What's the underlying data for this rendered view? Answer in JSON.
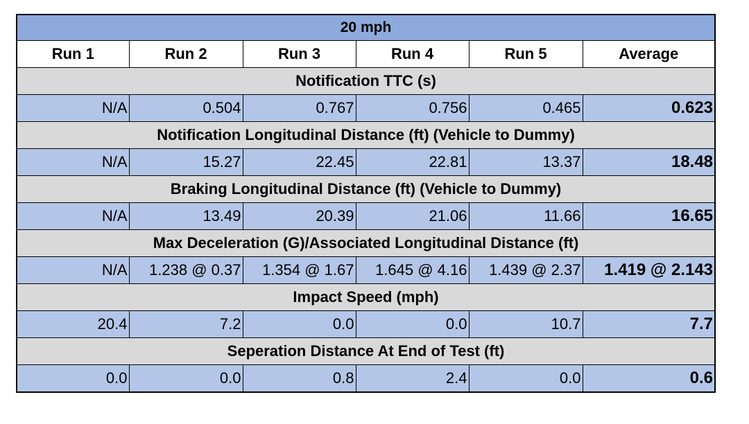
{
  "title": "20 mph",
  "headers": [
    "Run 1",
    "Run 2",
    "Run 3",
    "Run 4",
    "Run 5",
    "Average"
  ],
  "sections": [
    {
      "label": "Notification TTC (s)",
      "values": [
        "N/A",
        "0.504",
        "0.767",
        "0.756",
        "0.465",
        "0.623"
      ]
    },
    {
      "label": "Notification Longitudinal Distance (ft) (Vehicle to Dummy)",
      "values": [
        "N/A",
        "15.27",
        "22.45",
        "22.81",
        "13.37",
        "18.48"
      ]
    },
    {
      "label": "Braking Longitudinal Distance (ft) (Vehicle to Dummy)",
      "values": [
        "N/A",
        "13.49",
        "20.39",
        "21.06",
        "11.66",
        "16.65"
      ]
    },
    {
      "label": "Max Deceleration (G)/Associated Longitudinal Distance (ft)",
      "values": [
        "N/A",
        "1.238 @ 0.37",
        "1.354 @ 1.67",
        "1.645 @ 4.16",
        "1.439 @ 2.37",
        "1.419 @ 2.143"
      ]
    },
    {
      "label": "Impact Speed (mph)",
      "values": [
        "20.4",
        "7.2",
        "0.0",
        "0.0",
        "10.7",
        "7.7"
      ]
    },
    {
      "label": "Seperation Distance At End of Test (ft)",
      "values": [
        "0.0",
        "0.0",
        "0.8",
        "2.4",
        "0.0",
        "0.6"
      ]
    }
  ],
  "colors": {
    "title_bg": "#8ea9db",
    "section_bg": "#d9d9d9",
    "value_bg": "#b4c6e7",
    "header_bg": "#ffffff"
  }
}
